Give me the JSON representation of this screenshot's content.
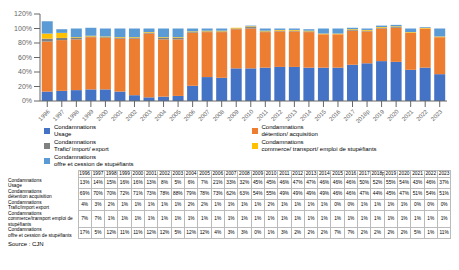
{
  "chart_data": {
    "type": "bar",
    "stacked": true,
    "grid": false,
    "legend": "bottom",
    "categories": [
      "1996",
      "1997",
      "1998",
      "1999",
      "2000",
      "2001",
      "2002",
      "2003",
      "2004",
      "2005",
      "2006",
      "2007",
      "2008",
      "2009",
      "2010",
      "2011",
      "2012",
      "2013",
      "2014",
      "2015",
      "2016",
      "2017",
      "2018p",
      "2019",
      "2020",
      "2021",
      "2022",
      "2023"
    ],
    "series": [
      {
        "name": "Condamnations\nUsage",
        "color": "#4472C4",
        "values": [
          13,
          14,
          15,
          16,
          16,
          13,
          8,
          5,
          6,
          7,
          21,
          33,
          32,
          45,
          45,
          46,
          47,
          47,
          46,
          46,
          46,
          50,
          52,
          55,
          54,
          43,
          46,
          37
        ]
      },
      {
        "name": "Condamnations\ndétention/ acquisition",
        "color": "#ED7D31",
        "values": [
          69,
          70,
          70,
          72,
          71,
          73,
          78,
          88,
          79,
          78,
          73,
          62,
          63,
          54,
          55,
          49,
          49,
          49,
          49,
          46,
          46,
          47,
          44,
          45,
          47,
          51,
          54,
          51
        ]
      },
      {
        "name": "Condamnations\nTrafic/ import/ export",
        "color": "#808080",
        "values": [
          4,
          3,
          2,
          1,
          1,
          1,
          1,
          1,
          2,
          2,
          1,
          1,
          1,
          1,
          2,
          1,
          1,
          1,
          1,
          0,
          0,
          1,
          1,
          1,
          1,
          0,
          0,
          0
        ]
      },
      {
        "name": "Condamnations\ncommerce/ transport/ emploi de stupéfiants",
        "color": "#FFC000",
        "values": [
          7,
          7,
          1,
          1,
          1,
          1,
          1,
          1,
          1,
          1,
          1,
          1,
          1,
          1,
          1,
          1,
          1,
          1,
          1,
          1,
          1,
          1,
          1,
          1,
          1,
          1,
          1,
          1
        ]
      },
      {
        "name": "Condamnations\noffre et cession de stupéfiants",
        "color": "#5B9BD5",
        "values": [
          17,
          5,
          12,
          11,
          11,
          12,
          12,
          5,
          12,
          12,
          4,
          3,
          3,
          0,
          1,
          3,
          2,
          2,
          2,
          7,
          7,
          2,
          2,
          2,
          2,
          5,
          1,
          11
        ]
      }
    ],
    "ylim": [
      0,
      120
    ],
    "yticks": [
      {
        "value": 0,
        "label": "0%"
      },
      {
        "value": 20,
        "label": "20%"
      },
      {
        "value": 40,
        "label": "40%"
      },
      {
        "value": 60,
        "label": "60%"
      },
      {
        "value": 80,
        "label": "80%"
      },
      {
        "value": 100,
        "label": "100%"
      },
      {
        "value": 120,
        "label": "120%"
      }
    ],
    "table": {
      "columns": [
        "1996",
        "1997",
        "1998",
        "1999",
        "2000",
        "2001",
        "2002",
        "2003",
        "2004",
        "2005",
        "2006",
        "2007",
        "2008",
        "2009",
        "2010",
        "2011",
        "2012",
        "2013",
        "2014",
        "2015",
        "2016",
        "2017",
        "2018p",
        "2019",
        "2020",
        "2021",
        "2022",
        "2023"
      ],
      "rows": [
        {
          "label": "Condamnations\nUsage",
          "cells": [
            "13%",
            "14%",
            "15%",
            "16%",
            "16%",
            "13%",
            "8%",
            "5%",
            "6%",
            "7%",
            "21%",
            "33%",
            "32%",
            "45%",
            "45%",
            "46%",
            "47%",
            "47%",
            "46%",
            "46%",
            "46%",
            "50%",
            "52%",
            "55%",
            "54%",
            "43%",
            "46%",
            "37%"
          ]
        },
        {
          "label": "Condamnations\ndétention acquisition",
          "cells": [
            "69%",
            "70%",
            "70%",
            "72%",
            "71%",
            "73%",
            "78%",
            "88%",
            "79%",
            "78%",
            "73%",
            "62%",
            "63%",
            "54%",
            "55%",
            "49%",
            "49%",
            "49%",
            "49%",
            "46%",
            "46%",
            "47%",
            "44%",
            "45%",
            "47%",
            "51%",
            "54%",
            "51%"
          ]
        },
        {
          "label": "Condamnations\nTrafic/import export",
          "cells": [
            "4%",
            "3%",
            "2%",
            "1%",
            "1%",
            "1%",
            "1%",
            "1%",
            "2%",
            "2%",
            "1%",
            "1%",
            "1%",
            "1%",
            "2%",
            "1%",
            "1%",
            "1%",
            "1%",
            "0%",
            "0%",
            "1%",
            "1%",
            "1%",
            "1%",
            "0%",
            "0%",
            "0%"
          ]
        },
        {
          "label": "Condamnations\ncommerce/transport emploi de stupéfiants",
          "cells": [
            "7%",
            "7%",
            "1%",
            "1%",
            "1%",
            "1%",
            "1%",
            "1%",
            "1%",
            "1%",
            "1%",
            "1%",
            "1%",
            "1%",
            "1%",
            "1%",
            "1%",
            "1%",
            "1%",
            "1%",
            "1%",
            "1%",
            "1%",
            "1%",
            "1%",
            "1%",
            "1%",
            "1%"
          ]
        },
        {
          "label": "Condamnations\noffre et cession de stupéfiants",
          "cells": [
            "17%",
            "5%",
            "12%",
            "11%",
            "11%",
            "12%",
            "12%",
            "5%",
            "12%",
            "12%",
            "4%",
            "3%",
            "3%",
            "0%",
            "1%",
            "3%",
            "2%",
            "2%",
            "2%",
            "7%",
            "7%",
            "2%",
            "2%",
            "2%",
            "2%",
            "5%",
            "1%",
            "11%"
          ]
        }
      ]
    },
    "source": "Source : CJN"
  }
}
